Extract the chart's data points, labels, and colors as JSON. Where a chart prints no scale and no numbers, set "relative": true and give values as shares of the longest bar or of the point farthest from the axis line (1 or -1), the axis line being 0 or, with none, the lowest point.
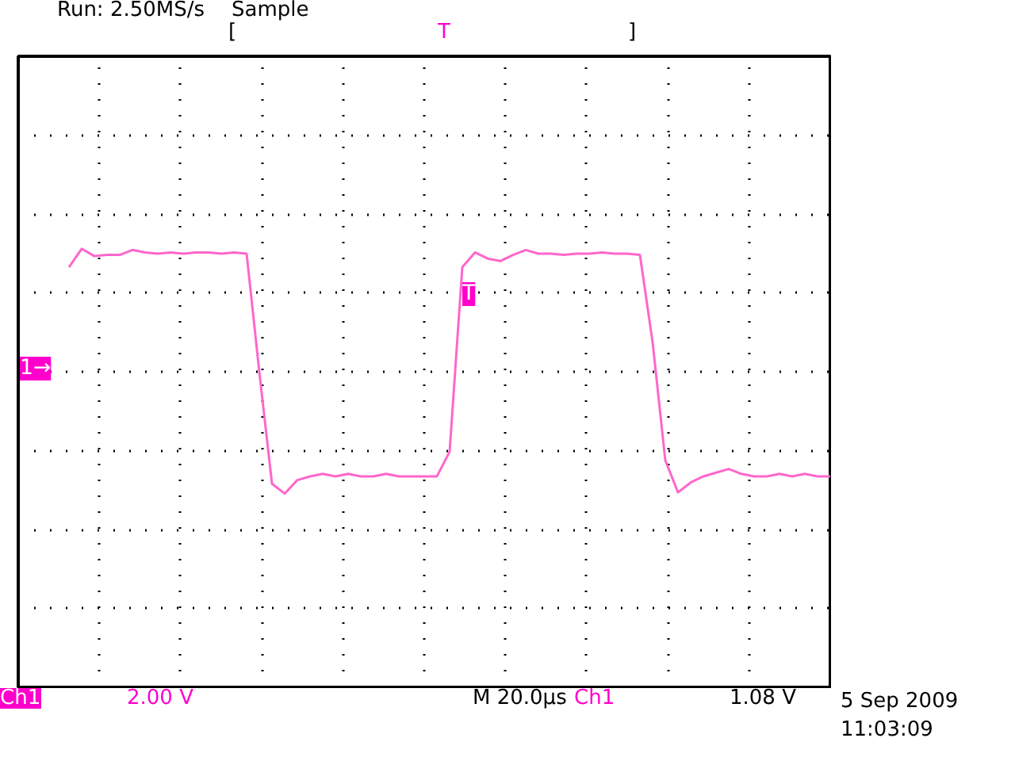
{
  "chart_data": {
    "type": "line",
    "relative": true,
    "grid": true,
    "color": "#ff66cc",
    "categories": [
      null,
      null,
      null,
      null,
      null,
      null,
      null,
      null,
      null,
      null,
      null,
      null,
      null,
      null,
      null,
      null,
      null,
      null,
      null,
      null,
      null,
      null,
      null,
      null,
      null,
      null,
      null,
      null,
      null,
      null,
      null,
      null,
      null,
      null,
      null,
      null,
      null,
      null,
      null,
      null,
      null,
      null,
      null,
      null,
      null,
      null,
      null,
      null,
      null,
      null,
      null,
      null,
      null,
      null,
      null,
      null,
      null,
      null,
      null,
      null,
      null,
      null,
      null,
      null,
      null
    ],
    "values": [
      null,
      null,
      null,
      null,
      0.85,
      1.0,
      0.94,
      0.95,
      0.95,
      0.99,
      0.97,
      0.96,
      0.97,
      0.96,
      0.97,
      0.97,
      0.96,
      0.97,
      0.96,
      0.0,
      -0.91,
      -0.99,
      -0.88,
      -0.85,
      -0.83,
      -0.85,
      -0.83,
      -0.85,
      -0.85,
      -0.83,
      -0.85,
      -0.85,
      -0.85,
      -0.85,
      -0.65,
      0.85,
      0.97,
      0.92,
      0.9,
      0.95,
      0.99,
      0.96,
      0.96,
      0.95,
      0.96,
      0.96,
      0.97,
      0.96,
      0.96,
      0.95,
      0.24,
      -0.72,
      -0.98,
      -0.9,
      -0.85,
      -0.82,
      -0.79,
      -0.83,
      -0.85,
      -0.85,
      -0.83,
      -0.85,
      -0.83,
      -0.85,
      -0.85
    ],
    "annotations": [
      "Run: 2.50MS/s",
      "Sample",
      "[",
      "T",
      "]",
      "1→",
      "T",
      "Ch1",
      "2.00 V",
      "M 20.0µs",
      "Ch1",
      "1.08 V",
      "5 Sep 2009",
      "11:03:09"
    ]
  }
}
